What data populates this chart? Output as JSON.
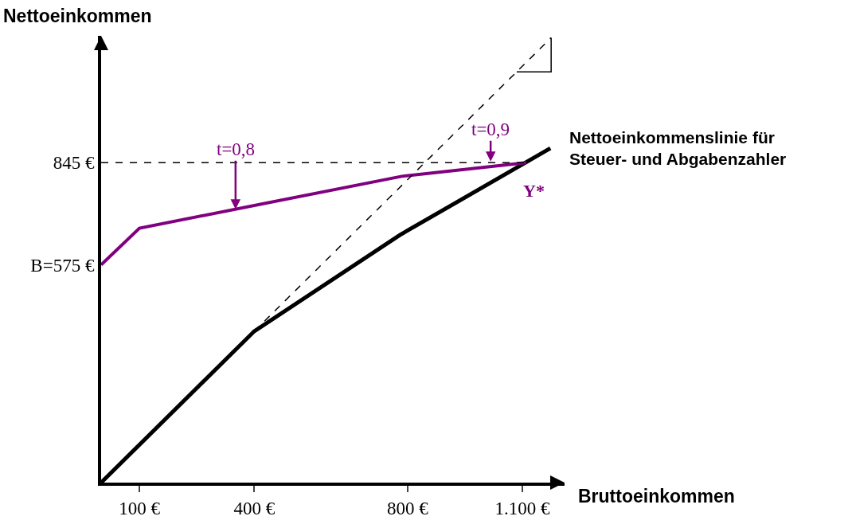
{
  "chart_data": {
    "type": "line",
    "xlabel": "Bruttoeinkommen",
    "ylabel": "Nettoeinkommen",
    "xlim": [
      0,
      1210
    ],
    "ylim": [
      0,
      1180
    ],
    "xticks": [
      {
        "value": 100,
        "label": "100 €"
      },
      {
        "value": 400,
        "label": "400 €"
      },
      {
        "value": 800,
        "label": "800 €"
      },
      {
        "value": 1100,
        "label": "1.100 €"
      }
    ],
    "yticks": [
      {
        "value": 575,
        "label": "B=575 €"
      },
      {
        "value": 845,
        "label": "845 €"
      }
    ],
    "series": [
      {
        "name": "Nettoeinkommenslinie für Steuer- und Abgabenzahler",
        "color": "#000000",
        "x": [
          0,
          400,
          780,
          1173
        ],
        "values": [
          0,
          400,
          654,
          883
        ]
      },
      {
        "color": "#800080",
        "x": [
          0,
          100,
          785,
          1110
        ],
        "values": [
          575,
          672,
          809,
          845
        ]
      },
      {
        "color": "#000000",
        "line_style": "dashed",
        "x": [
          400,
          1175
        ],
        "values": [
          400,
          1175
        ]
      },
      {
        "color": "#000000",
        "line_style": "solid",
        "x": [
          1085,
          1175,
          1175
        ],
        "values": [
          1085,
          1085,
          1175
        ]
      }
    ],
    "ref_lines": [
      {
        "axis": "y",
        "value": 845,
        "color": "#000000",
        "line_style": "dashed"
      }
    ],
    "annotations": [
      {
        "text": "t=0,8",
        "x": 351,
        "y": 722
      },
      {
        "text": "t=0,9",
        "x": 1017,
        "y": 848
      },
      {
        "text": "Y*",
        "x": 1110,
        "y": 845
      }
    ],
    "grid": false,
    "legend": false,
    "marker": "none",
    "line_style": "solid"
  }
}
